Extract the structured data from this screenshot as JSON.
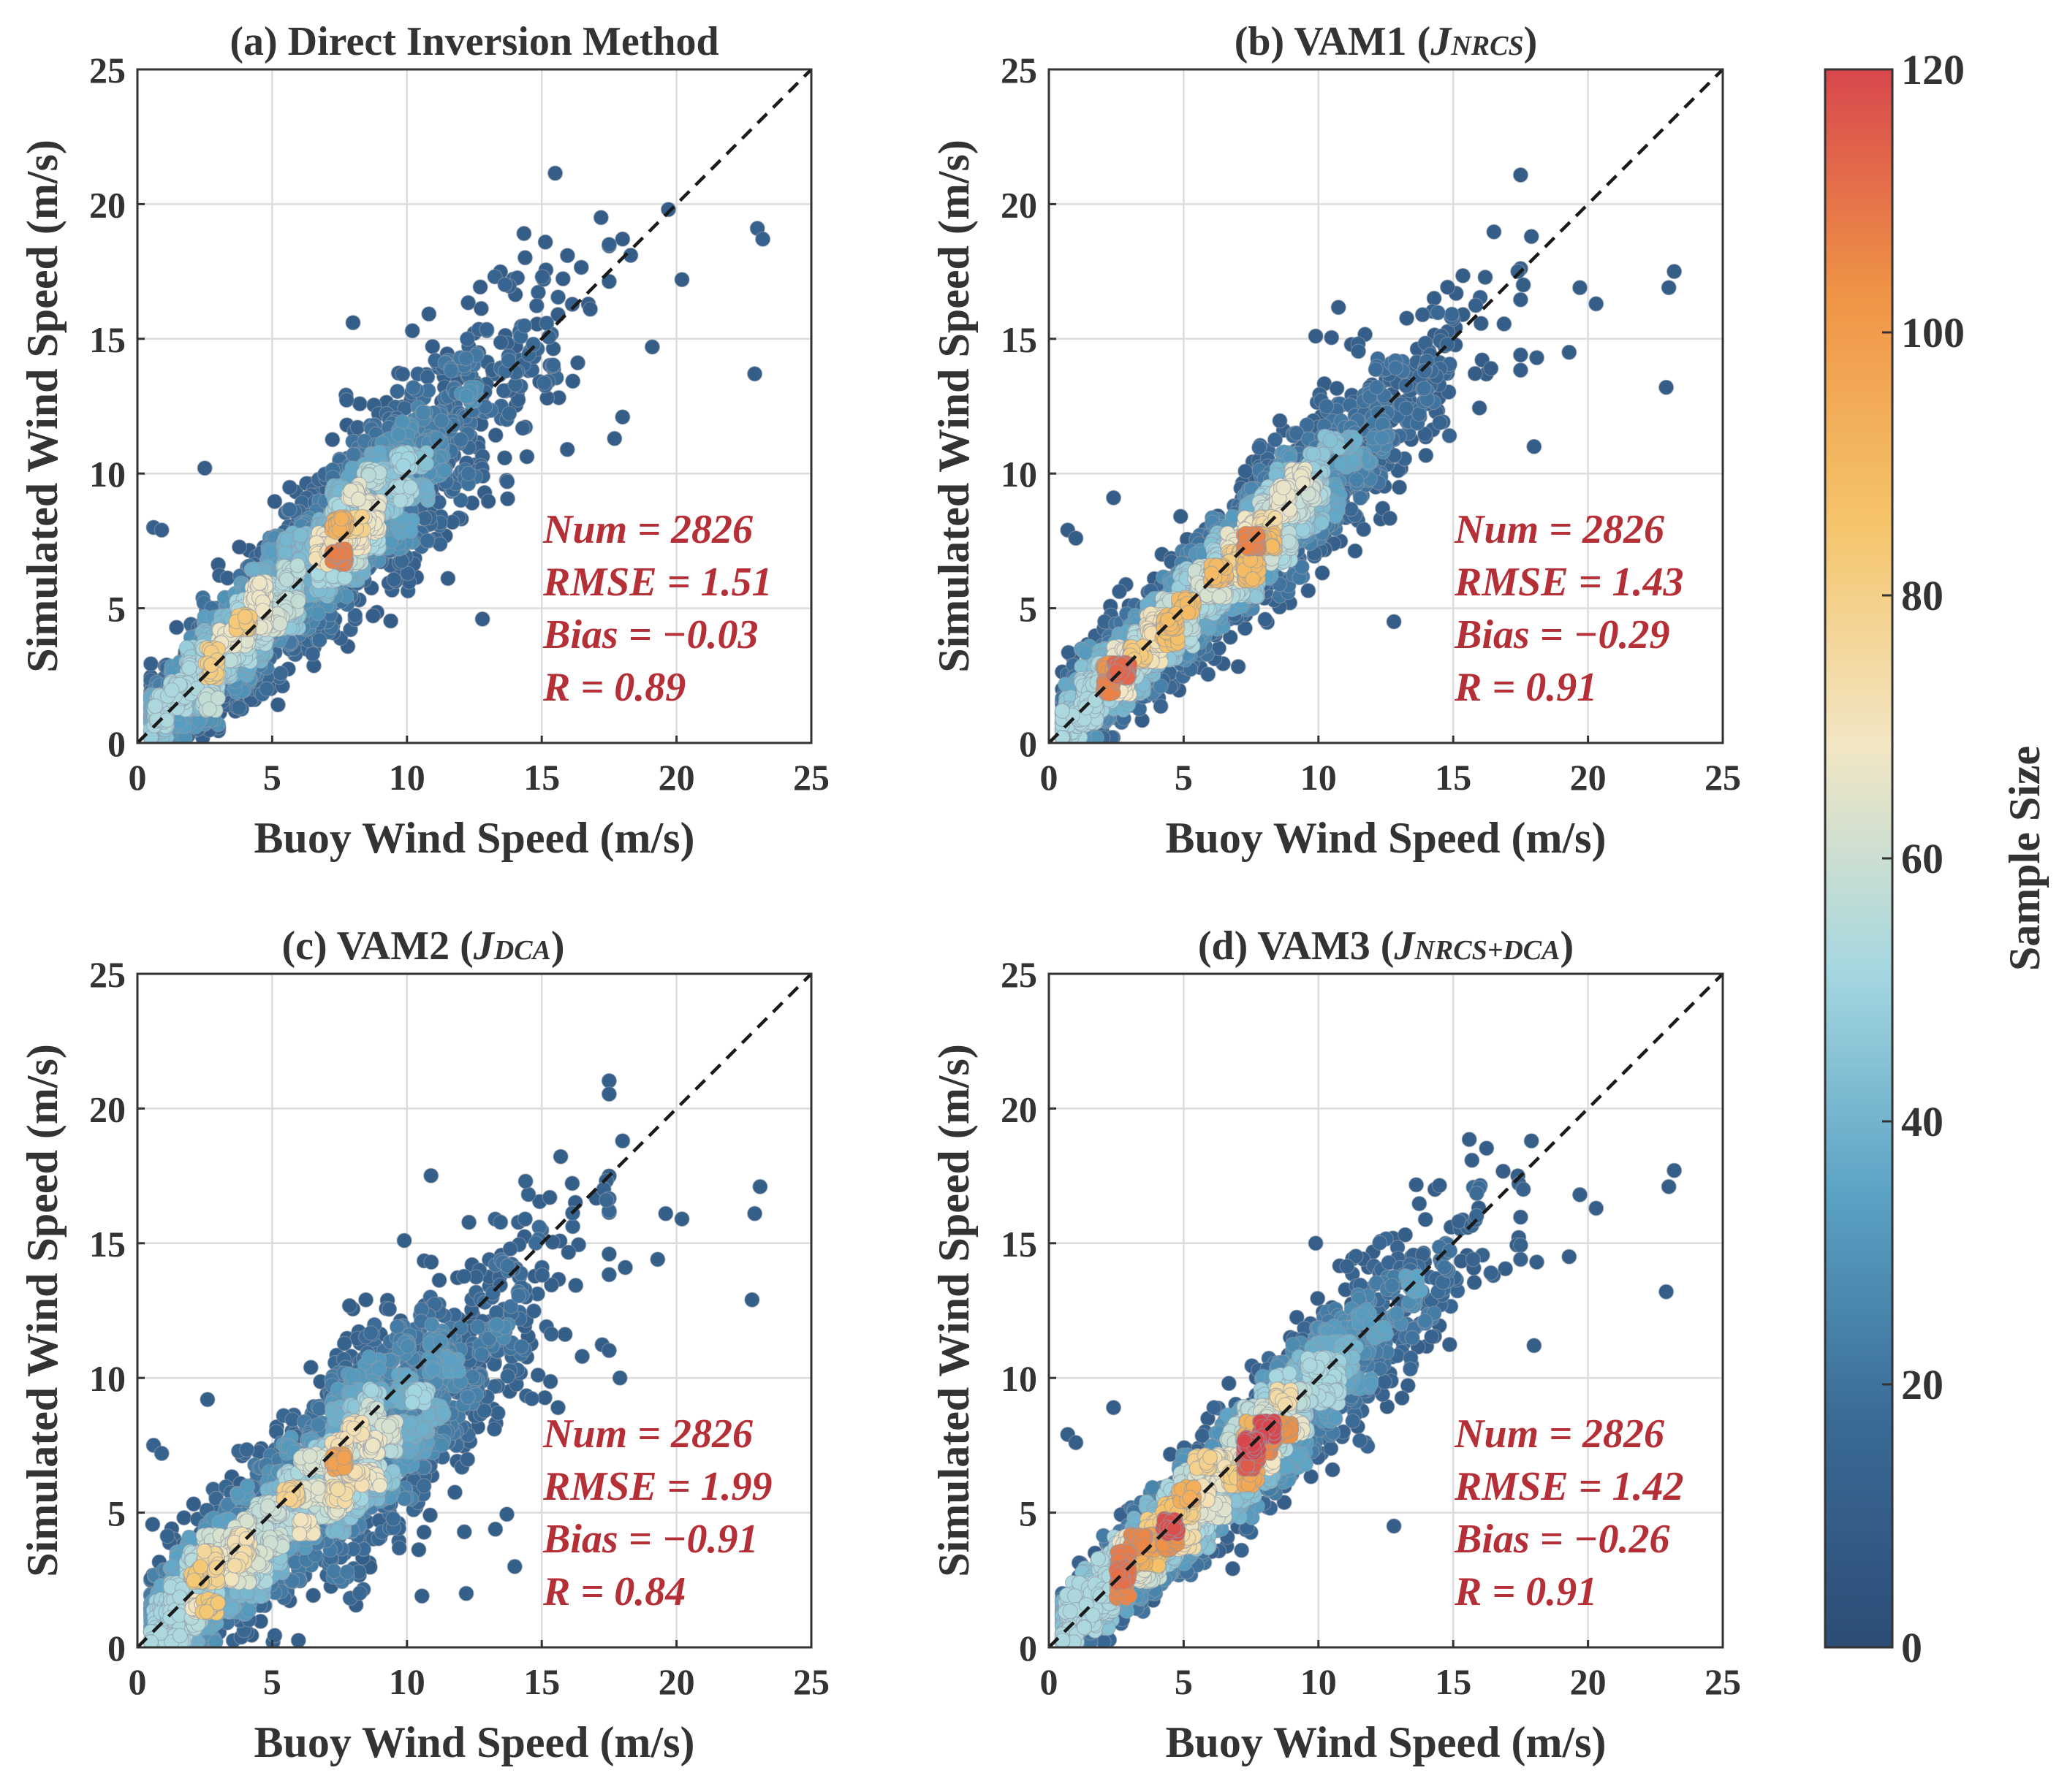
{
  "colorbar": {
    "label": "Sample Size",
    "ticks": [
      "0",
      "20",
      "40",
      "60",
      "80",
      "100",
      "120"
    ],
    "min": 0,
    "max": 120,
    "colors": [
      "#2c4d75",
      "#3a6a96",
      "#5aa2c4",
      "#a5d7e0",
      "#f2e6c4",
      "#f5c46a",
      "#ef9446",
      "#d8474d"
    ]
  },
  "chart_data": [
    {
      "id": "a",
      "type": "scatter",
      "title": "(a) Direct Inversion Method",
      "title_plain": "(a) Direct Inversion Method",
      "title_main": "",
      "title_sub": "",
      "title_close": "",
      "xlabel": "Buoy Wind Speed (m/s)",
      "ylabel": "Simulated Wind Speed (m/s)",
      "xlim": [
        0,
        25
      ],
      "ylim": [
        0,
        25
      ],
      "xticks": [
        "0",
        "5",
        "10",
        "15",
        "20",
        "25"
      ],
      "yticks": [
        "0",
        "5",
        "10",
        "15",
        "20",
        "25"
      ],
      "grid": true,
      "reference_line": "1:1 dashed",
      "stats": {
        "num": "Num = 2826",
        "rmse": "RMSE = 1.51",
        "bias": "Bias = −0.03",
        "r": "R = 0.89"
      },
      "sim": {
        "slope": 0.97,
        "noise": 1.5,
        "hot_lo": 3.5,
        "hot_hi": 8.5,
        "peak": 100,
        "seed": 11
      },
      "outliers": [
        [
          17.2,
          19.5
        ],
        [
          17.5,
          18.5
        ],
        [
          18.0,
          18.7
        ],
        [
          19.7,
          19.8
        ],
        [
          23.0,
          19.1
        ],
        [
          23.2,
          18.7
        ],
        [
          20.2,
          17.2
        ],
        [
          18.3,
          18.1
        ],
        [
          19.1,
          14.7
        ],
        [
          22.9,
          13.7
        ],
        [
          18.0,
          12.1
        ],
        [
          17.7,
          11.3
        ],
        [
          12.8,
          4.6
        ],
        [
          8.0,
          15.6
        ],
        [
          10.2,
          15.3
        ],
        [
          0.6,
          8.0
        ],
        [
          0.9,
          7.9
        ],
        [
          2.5,
          10.2
        ],
        [
          15.2,
          12.8
        ],
        [
          16.8,
          16.1
        ]
      ]
    },
    {
      "id": "b",
      "type": "scatter",
      "title": "(b) VAM1 (JNRCS)",
      "title_plain": "",
      "title_main": "(b) VAM1 (",
      "title_sub": "NRCS",
      "title_close": ")",
      "xlabel": "Buoy Wind Speed (m/s)",
      "ylabel": "Simulated Wind Speed (m/s)",
      "xlim": [
        0,
        25
      ],
      "ylim": [
        0,
        25
      ],
      "xticks": [
        "0",
        "5",
        "10",
        "15",
        "20",
        "25"
      ],
      "yticks": [
        "0",
        "5",
        "10",
        "15",
        "20",
        "25"
      ],
      "grid": true,
      "reference_line": "1:1 dashed",
      "stats": {
        "num": "Num = 2826",
        "rmse": "RMSE = 1.43",
        "bias": "Bias = −0.29",
        "r": "R = 0.91"
      },
      "sim": {
        "slope": 0.93,
        "noise": 1.25,
        "hot_lo": 3.0,
        "hot_hi": 9.0,
        "peak": 105,
        "seed": 23
      },
      "outliers": [
        [
          17.9,
          18.8
        ],
        [
          17.4,
          17.5
        ],
        [
          17.6,
          17.0
        ],
        [
          19.7,
          16.9
        ],
        [
          20.3,
          16.3
        ],
        [
          23.2,
          17.5
        ],
        [
          23.0,
          16.9
        ],
        [
          22.9,
          13.2
        ],
        [
          19.3,
          14.5
        ],
        [
          17.5,
          14.4
        ],
        [
          18.1,
          14.3
        ],
        [
          18.0,
          11.0
        ],
        [
          9.9,
          15.1
        ],
        [
          12.8,
          4.5
        ],
        [
          0.7,
          7.9
        ],
        [
          1.0,
          7.6
        ],
        [
          2.4,
          9.1
        ],
        [
          16.4,
          13.9
        ]
      ]
    },
    {
      "id": "c",
      "type": "scatter",
      "title": "(c) VAM2 (JDCA)",
      "title_plain": "",
      "title_main": "(c) VAM2 (",
      "title_sub": "DCA",
      "title_close": ")",
      "xlabel": "Buoy Wind Speed (m/s)",
      "ylabel": "Simulated Wind Speed (m/s)",
      "xlim": [
        0,
        25
      ],
      "ylim": [
        0,
        25
      ],
      "xticks": [
        "0",
        "5",
        "10",
        "15",
        "20",
        "25"
      ],
      "yticks": [
        "0",
        "5",
        "10",
        "15",
        "20",
        "25"
      ],
      "grid": true,
      "reference_line": "1:1 dashed",
      "stats": {
        "num": "Num = 2826",
        "rmse": "RMSE = 1.99",
        "bias": "Bias = −0.91",
        "r": "R = 0.84"
      },
      "sim": {
        "slope": 0.85,
        "noise": 1.75,
        "hot_lo": 3.0,
        "hot_hi": 9.0,
        "peak": 90,
        "seed": 37
      },
      "outliers": [
        [
          18.0,
          18.8
        ],
        [
          17.3,
          17.0
        ],
        [
          17.4,
          16.6
        ],
        [
          19.6,
          16.1
        ],
        [
          20.2,
          15.9
        ],
        [
          23.1,
          17.1
        ],
        [
          22.9,
          16.1
        ],
        [
          22.8,
          12.9
        ],
        [
          19.3,
          14.4
        ],
        [
          18.1,
          14.1
        ],
        [
          17.5,
          14.6
        ],
        [
          17.9,
          10.0
        ],
        [
          14.4,
          17.3
        ],
        [
          9.9,
          15.1
        ],
        [
          10.9,
          14.3
        ],
        [
          12.2,
          2.0
        ],
        [
          14.0,
          3.0
        ],
        [
          0.6,
          7.5
        ],
        [
          0.9,
          7.2
        ],
        [
          2.6,
          9.2
        ],
        [
          16.5,
          10.8
        ]
      ]
    },
    {
      "id": "d",
      "type": "scatter",
      "title": "(d) VAM3 (JNRCS+DCA)",
      "title_plain": "",
      "title_main": "(d) VAM3 (",
      "title_sub": "NRCS+DCA",
      "title_close": ")",
      "xlabel": "Buoy Wind Speed (m/s)",
      "ylabel": "Simulated Wind Speed (m/s)",
      "xlim": [
        0,
        25
      ],
      "ylim": [
        0,
        25
      ],
      "xticks": [
        "0",
        "5",
        "10",
        "15",
        "20",
        "25"
      ],
      "yticks": [
        "0",
        "5",
        "10",
        "15",
        "20",
        "25"
      ],
      "grid": true,
      "reference_line": "1:1 dashed",
      "stats": {
        "num": "Num = 2826",
        "rmse": "RMSE = 1.42",
        "bias": "Bias = −0.26",
        "r": "R = 0.91"
      },
      "sim": {
        "slope": 0.94,
        "noise": 1.2,
        "hot_lo": 3.5,
        "hot_hi": 8.5,
        "peak": 120,
        "seed": 53
      },
      "outliers": [
        [
          17.9,
          18.8
        ],
        [
          17.4,
          17.5
        ],
        [
          17.6,
          17.0
        ],
        [
          19.7,
          16.8
        ],
        [
          20.3,
          16.3
        ],
        [
          23.2,
          17.7
        ],
        [
          23.0,
          17.1
        ],
        [
          22.9,
          13.2
        ],
        [
          19.3,
          14.5
        ],
        [
          17.5,
          14.4
        ],
        [
          18.1,
          14.3
        ],
        [
          18.0,
          11.2
        ],
        [
          9.9,
          15.0
        ],
        [
          12.8,
          4.5
        ],
        [
          0.7,
          7.9
        ],
        [
          1.0,
          7.6
        ],
        [
          2.4,
          8.9
        ],
        [
          16.4,
          13.9
        ]
      ]
    }
  ]
}
